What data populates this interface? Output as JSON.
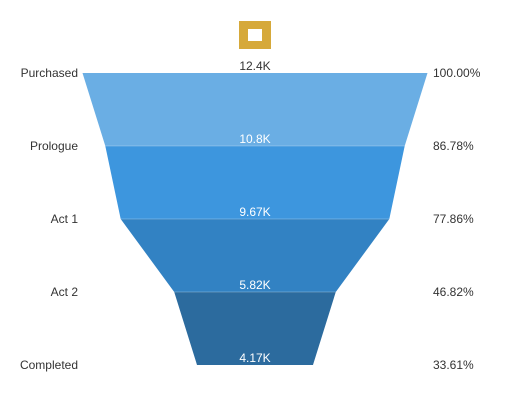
{
  "chart_data": {
    "type": "funnel",
    "categories": [
      "Purchased",
      "Prologue",
      "Act 1",
      "Act 2",
      "Completed"
    ],
    "values": [
      12400,
      10800,
      9670,
      5820,
      4170
    ],
    "value_labels": [
      "12.4K",
      "10.8K",
      "9.67K",
      "5.82K",
      "4.17K"
    ],
    "percent_labels": [
      "100.00%",
      "86.78%",
      "77.86%",
      "46.82%",
      "33.61%"
    ],
    "percentages": [
      100.0,
      86.78,
      77.86,
      46.82,
      33.61
    ],
    "colors": [
      "#6aaee4",
      "#3d96de",
      "#3282c3",
      "#2c6b9e"
    ],
    "legend_marker_color": "#d6a93a"
  }
}
